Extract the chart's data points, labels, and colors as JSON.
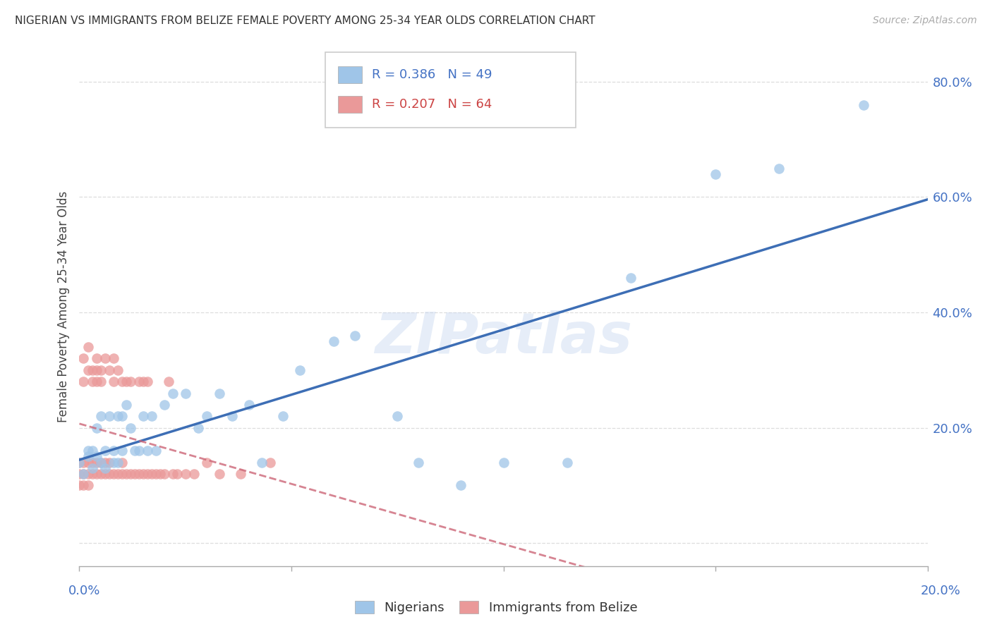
{
  "title": "NIGERIAN VS IMMIGRANTS FROM BELIZE FEMALE POVERTY AMONG 25-34 YEAR OLDS CORRELATION CHART",
  "source": "Source: ZipAtlas.com",
  "ylabel": "Female Poverty Among 25-34 Year Olds",
  "y_ticks": [
    0.0,
    0.2,
    0.4,
    0.6,
    0.8
  ],
  "y_tick_labels": [
    "",
    "20.0%",
    "40.0%",
    "60.0%",
    "80.0%"
  ],
  "x_range": [
    0.0,
    0.2
  ],
  "y_range": [
    -0.04,
    0.86
  ],
  "nigerian_color": "#9fc5e8",
  "belize_color": "#ea9999",
  "trendline_nigerian_color": "#3d6eb5",
  "trendline_belize_color": "#cc6677",
  "background_color": "#ffffff",
  "grid_color": "#dddddd",
  "watermark": "ZIPatlas",
  "legend_r1_label": "R = 0.386",
  "legend_n1_label": "N = 49",
  "legend_r2_label": "R = 0.207",
  "legend_n2_label": "N = 64",
  "nigerian_points_x": [
    0.0,
    0.001,
    0.002,
    0.002,
    0.003,
    0.003,
    0.004,
    0.004,
    0.005,
    0.005,
    0.006,
    0.006,
    0.007,
    0.008,
    0.008,
    0.009,
    0.009,
    0.01,
    0.01,
    0.011,
    0.012,
    0.013,
    0.014,
    0.015,
    0.016,
    0.017,
    0.018,
    0.02,
    0.022,
    0.025,
    0.028,
    0.03,
    0.033,
    0.036,
    0.04,
    0.043,
    0.048,
    0.052,
    0.06,
    0.065,
    0.075,
    0.08,
    0.09,
    0.1,
    0.115,
    0.13,
    0.15,
    0.165,
    0.185
  ],
  "nigerian_points_y": [
    0.14,
    0.12,
    0.15,
    0.16,
    0.13,
    0.16,
    0.15,
    0.2,
    0.14,
    0.22,
    0.13,
    0.16,
    0.22,
    0.14,
    0.16,
    0.22,
    0.14,
    0.16,
    0.22,
    0.24,
    0.2,
    0.16,
    0.16,
    0.22,
    0.16,
    0.22,
    0.16,
    0.24,
    0.26,
    0.26,
    0.2,
    0.22,
    0.26,
    0.22,
    0.24,
    0.14,
    0.22,
    0.3,
    0.35,
    0.36,
    0.22,
    0.14,
    0.1,
    0.14,
    0.14,
    0.46,
    0.64,
    0.65,
    0.76
  ],
  "belize_points_x": [
    0.0,
    0.0,
    0.0,
    0.001,
    0.001,
    0.001,
    0.001,
    0.001,
    0.002,
    0.002,
    0.002,
    0.002,
    0.002,
    0.003,
    0.003,
    0.003,
    0.003,
    0.004,
    0.004,
    0.004,
    0.004,
    0.004,
    0.005,
    0.005,
    0.005,
    0.005,
    0.006,
    0.006,
    0.006,
    0.007,
    0.007,
    0.007,
    0.008,
    0.008,
    0.008,
    0.009,
    0.009,
    0.01,
    0.01,
    0.01,
    0.011,
    0.011,
    0.012,
    0.012,
    0.013,
    0.014,
    0.014,
    0.015,
    0.015,
    0.016,
    0.016,
    0.017,
    0.018,
    0.019,
    0.02,
    0.021,
    0.022,
    0.023,
    0.025,
    0.027,
    0.03,
    0.033,
    0.038,
    0.045
  ],
  "belize_points_y": [
    0.1,
    0.12,
    0.14,
    0.1,
    0.12,
    0.14,
    0.28,
    0.32,
    0.1,
    0.12,
    0.14,
    0.3,
    0.34,
    0.12,
    0.14,
    0.28,
    0.3,
    0.12,
    0.14,
    0.28,
    0.3,
    0.32,
    0.12,
    0.14,
    0.28,
    0.3,
    0.12,
    0.14,
    0.32,
    0.12,
    0.14,
    0.3,
    0.12,
    0.28,
    0.32,
    0.12,
    0.3,
    0.12,
    0.14,
    0.28,
    0.12,
    0.28,
    0.12,
    0.28,
    0.12,
    0.12,
    0.28,
    0.12,
    0.28,
    0.12,
    0.28,
    0.12,
    0.12,
    0.12,
    0.12,
    0.28,
    0.12,
    0.12,
    0.12,
    0.12,
    0.14,
    0.12,
    0.12,
    0.14
  ]
}
